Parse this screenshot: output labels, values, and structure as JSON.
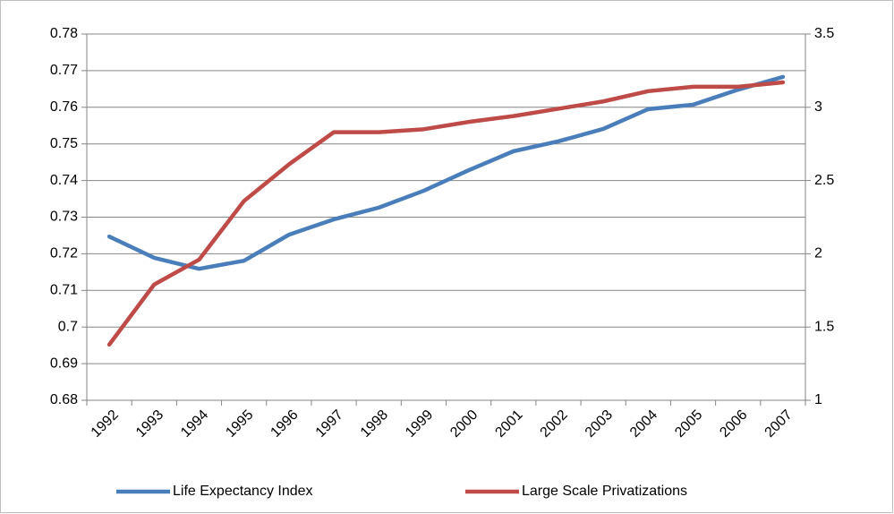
{
  "chart_data": {
    "type": "line",
    "categories": [
      "1992",
      "1993",
      "1994",
      "1995",
      "1996",
      "1997",
      "1998",
      "1999",
      "2000",
      "2001",
      "2002",
      "2003",
      "2004",
      "2005",
      "2006",
      "2007"
    ],
    "series": [
      {
        "name": "Life Expectancy Index",
        "color": "#4a7ebb",
        "axis": "y",
        "values": [
          0.7247,
          0.7189,
          0.7159,
          0.7181,
          0.7252,
          0.7294,
          0.7326,
          0.7372,
          0.7428,
          0.748,
          0.7507,
          0.7541,
          0.7595,
          0.7607,
          0.7648,
          0.7683
        ]
      },
      {
        "name": "Large Scale Privatizations",
        "color": "#be4b48",
        "axis": "y2",
        "values": [
          1.38,
          1.79,
          1.96,
          2.36,
          2.61,
          2.83,
          2.83,
          2.85,
          2.9,
          2.94,
          2.99,
          3.04,
          3.11,
          3.14,
          3.14,
          3.17
        ]
      }
    ],
    "ylim": [
      0.68,
      0.78
    ],
    "yticks": [
      0.68,
      0.69,
      0.7,
      0.71,
      0.72,
      0.73,
      0.74,
      0.75,
      0.76,
      0.77,
      0.78
    ],
    "y2lim": [
      1,
      3.5
    ],
    "y2ticks": [
      1,
      1.5,
      2,
      2.5,
      3,
      3.5
    ],
    "grid": true,
    "legend": "bottom"
  }
}
